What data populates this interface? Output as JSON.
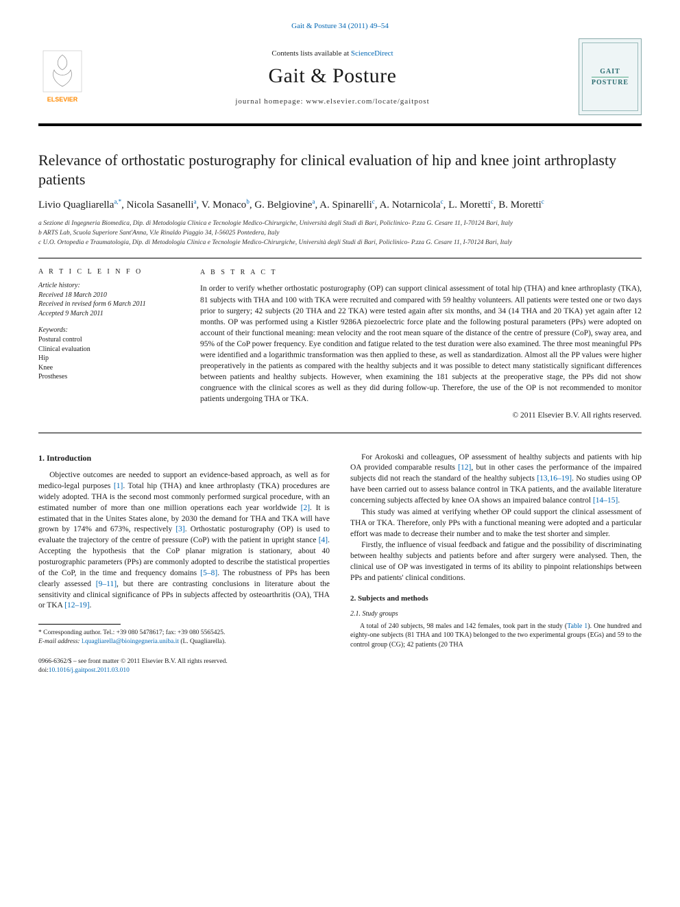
{
  "header": {
    "citation": "Gait & Posture 34 (2011) 49–54",
    "contents_prefix": "Contents lists available at ",
    "contents_link": "ScienceDirect",
    "journal_name": "Gait & Posture",
    "homepage_prefix": "journal homepage: ",
    "homepage_url": "www.elsevier.com/locate/gaitpost",
    "cover_line1": "GAIT",
    "cover_line2": "POSTURE",
    "logo_color": "#ff8a00"
  },
  "title": "Relevance of orthostatic posturography for clinical evaluation of hip and knee joint arthroplasty patients",
  "authors_html": "Livio Quagliarella<sup>a,*</sup>, Nicola Sasanelli<sup>a</sup>, V. Monaco<sup>b</sup>, G. Belgiovine<sup>a</sup>, A. Spinarelli<sup>c</sup>, A. Notarnicola<sup>c</sup>, L. Moretti<sup>c</sup>, B. Moretti<sup>c</sup>",
  "affiliations": [
    "a Sezione di Ingegneria Biomedica, Dip. di Metodologia Clinica e Tecnologie Medico-Chirurgiche, Università degli Studi di Bari, Policlinico- P.zza G. Cesare 11, I-70124 Bari, Italy",
    "b ARTS Lab, Scuola Superiore Sant'Anna, V.le Rinaldo Piaggio 34, I-56025 Pontedera, Italy",
    "c U.O. Ortopedia e Traumatologia, Dip. di Metodologia Clinica e Tecnologie Medico-Chirurgiche, Università degli Studi di Bari, Policlinico- P.zza G. Cesare 11, I-70124 Bari, Italy"
  ],
  "info": {
    "head": "A R T I C L E  I N F O",
    "history_head": "Article history:",
    "history": [
      "Received 18 March 2010",
      "Received in revised form 6 March 2011",
      "Accepted 9 March 2011"
    ],
    "keywords_head": "Keywords:",
    "keywords": [
      "Postural control",
      "Clinical evaluation",
      "Hip",
      "Knee",
      "Prostheses"
    ]
  },
  "abstract": {
    "head": "A B S T R A C T",
    "body": "In order to verify whether orthostatic posturography (OP) can support clinical assessment of total hip (THA) and knee arthroplasty (TKA), 81 subjects with THA and 100 with TKA were recruited and compared with 59 healthy volunteers. All patients were tested one or two days prior to surgery; 42 subjects (20 THA and 22 TKA) were tested again after six months, and 34 (14 THA and 20 TKA) yet again after 12 months. OP was performed using a Kistler 9286A piezoelectric force plate and the following postural parameters (PPs) were adopted on account of their functional meaning: mean velocity and the root mean square of the distance of the centre of pressure (CoP), sway area, and 95% of the CoP power frequency. Eye condition and fatigue related to the test duration were also examined. The three most meaningful PPs were identified and a logarithmic transformation was then applied to these, as well as standardization. Almost all the PP values were higher preoperatively in the patients as compared with the healthy subjects and it was possible to detect many statistically significant differences between patients and healthy subjects. However, when examining the 181 subjects at the preoperative stage, the PPs did not show congruence with the clinical scores as well as they did during follow-up. Therefore, the use of the OP is not recommended to monitor patients undergoing THA or TKA.",
    "copyright": "© 2011 Elsevier B.V. All rights reserved."
  },
  "body": {
    "intro_head": "1. Introduction",
    "p1": "Objective outcomes are needed to support an evidence-based approach, as well as for medico-legal purposes [1]. Total hip (THA) and knee arthroplasty (TKA) procedures are widely adopted. THA is the second most commonly performed surgical procedure, with an estimated number of more than one million operations each year worldwide [2]. It is estimated that in the Unites States alone, by 2030 the demand for THA and TKA will have grown by 174% and 673%, respectively [3]. Orthostatic posturography (OP) is used to evaluate the trajectory of the centre of pressure (CoP) with the patient in upright stance [4]. Accepting the hypothesis that the CoP planar migration is stationary, about 40 posturographic parameters (PPs) are commonly adopted to describe the statistical properties of the CoP, in the time and frequency domains [5–8]. The robustness of PPs has been clearly assessed [9–11], but there are contrasting conclusions in literature about the sensitivity and clinical significance of PPs in subjects affected by osteoarthritis (OA), THA or TKA [12–19].",
    "p2": "For Arokoski and colleagues, OP assessment of healthy subjects and patients with hip OA provided comparable results [12], but in other cases the performance of the impaired subjects did not reach the standard of the healthy subjects [13,16–19]. No studies using OP have been carried out to assess balance control in TKA patients, and the available literature concerning subjects affected by knee OA shows an impaired balance control [14–15].",
    "p3": "This study was aimed at verifying whether OP could support the clinical assessment of THA or TKA. Therefore, only PPs with a functional meaning were adopted and a particular effort was made to decrease their number and to make the test shorter and simpler.",
    "p4": "Firstly, the influence of visual feedback and fatigue and the possibility of discriminating between healthy subjects and patients before and after surgery were analysed. Then, the clinical use of OP was investigated in terms of its ability to pinpoint relationships between PPs and patients' clinical conditions.",
    "methods_head": "2. Subjects and methods",
    "methods_sub": "2.1. Study groups",
    "methods_body": "A total of 240 subjects, 98 males and 142 females, took part in the study (Table 1). One hundred and eighty-one subjects (81 THA and 100 TKA) belonged to the two experimental groups (EGs) and 59 to the control group (CG); 42 patients (20 THA",
    "refs": {
      "r1": "[1]",
      "r2": "[2]",
      "r3": "[3]",
      "r4": "[4]",
      "r5_8": "[5–8]",
      "r9_11": "[9–11]",
      "r12_19": "[12–19]",
      "r12": "[12]",
      "r13_16_19": "[13,16–19]",
      "r14_15": "[14–15]",
      "table1": "Table 1"
    }
  },
  "footnotes": {
    "corr": "* Corresponding author. Tel.: +39 080 5478617; fax: +39 080 5565425.",
    "email_label": "E-mail address:",
    "email": "l.quagliarella@bioingegneria.uniba.it",
    "email_paren": "(L. Quagliarella)."
  },
  "bottom": {
    "copyright": "0966-6362/$ – see front matter © 2011 Elsevier B.V. All rights reserved.",
    "doi_label": "doi:",
    "doi": "10.1016/j.gaitpost.2011.03.010"
  },
  "colors": {
    "link": "#0066b3",
    "logo": "#ff8a00",
    "cover_text": "#2a6b6f"
  }
}
